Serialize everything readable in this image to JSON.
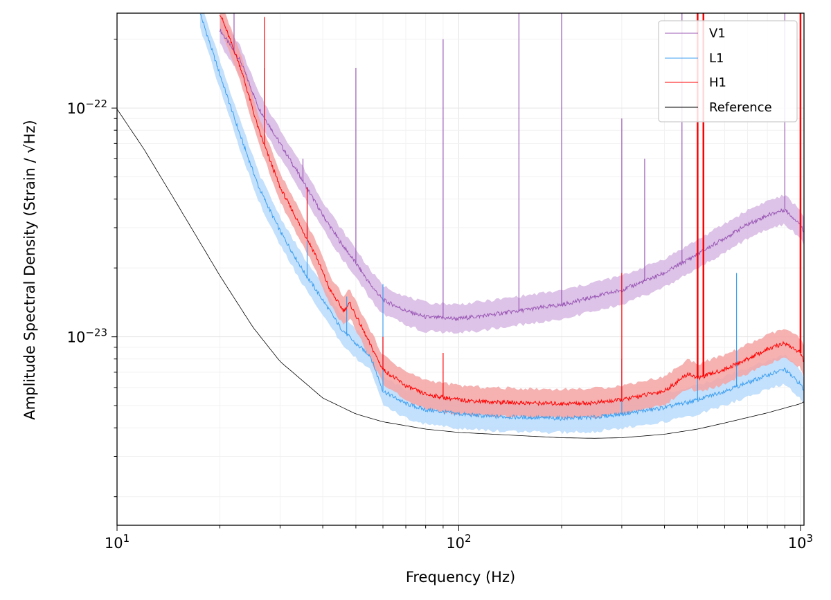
{
  "chart_data": {
    "type": "line",
    "xscale": "log",
    "yscale": "log",
    "xlabel": "Frequency (Hz)",
    "ylabel": "Amplitude Spectral Density (Strain / √Hz)",
    "xlim": [
      10,
      1024
    ],
    "ylim": [
      1.5e-24,
      2.6e-22
    ],
    "x_ticks": [
      {
        "value": 10,
        "base": "10",
        "exp": "1"
      },
      {
        "value": 100,
        "base": "10",
        "exp": "2"
      },
      {
        "value": 1000,
        "base": "10",
        "exp": "3"
      }
    ],
    "y_ticks": [
      {
        "value": 1e-23,
        "base": "10",
        "exp": "−23"
      },
      {
        "value": 1e-22,
        "base": "10",
        "exp": "−22"
      }
    ],
    "grid": "on (major and minor, light)",
    "legend_position": "top-right",
    "series": [
      {
        "name": "V1",
        "color": "#9b59b6",
        "band_color": "#d7b8e3",
        "x": [
          20,
          23,
          26,
          30,
          35,
          40,
          45,
          50,
          55,
          60,
          70,
          80,
          100,
          120,
          150,
          200,
          250,
          300,
          400,
          500,
          600,
          700,
          800,
          900,
          1000,
          1024
        ],
        "y": [
          2.2e-22,
          1.6e-22,
          1e-22,
          7e-23,
          4.8e-23,
          3.4e-23,
          2.6e-23,
          2.1e-23,
          1.7e-23,
          1.45e-23,
          1.3e-23,
          1.22e-23,
          1.2e-23,
          1.24e-23,
          1.3e-23,
          1.38e-23,
          1.5e-23,
          1.6e-23,
          1.9e-23,
          2.3e-23,
          2.7e-23,
          3.1e-23,
          3.4e-23,
          3.6e-23,
          3.1e-23,
          2.9e-23
        ],
        "peaks": [
          [
            22,
            2.6e-22
          ],
          [
            27,
            1.5e-22
          ],
          [
            35,
            6e-23
          ],
          [
            50,
            1.5e-22
          ],
          [
            90,
            2e-22
          ],
          [
            150,
            2.6e-22
          ],
          [
            200,
            2.6e-22
          ],
          [
            300,
            9e-23
          ],
          [
            350,
            6e-23
          ],
          [
            450,
            2.6e-22
          ],
          [
            500,
            2.6e-22
          ],
          [
            900,
            2.6e-22
          ]
        ]
      },
      {
        "name": "L1",
        "color": "#3d9ff0",
        "band_color": "#b8dafb",
        "x": [
          17.5,
          20,
          23,
          26,
          30,
          35,
          40,
          45,
          50,
          55,
          60,
          70,
          80,
          100,
          120,
          150,
          200,
          250,
          300,
          400,
          500,
          600,
          700,
          800,
          900,
          1000,
          1024
        ],
        "y": [
          2.6e-22,
          1.4e-22,
          7.5e-23,
          4.5e-23,
          2.9e-23,
          1.95e-23,
          1.45e-23,
          1.1e-23,
          9.3e-24,
          8.3e-24,
          5.8e-24,
          5.1e-24,
          4.8e-24,
          4.6e-24,
          4.5e-24,
          4.45e-24,
          4.4e-24,
          4.45e-24,
          4.6e-24,
          4.9e-24,
          5.3e-24,
          5.8e-24,
          6.3e-24,
          6.8e-24,
          7.2e-24,
          6.2e-24,
          5.8e-24
        ],
        "peaks": [
          [
            36,
            4e-23
          ],
          [
            47,
            1.5e-23
          ],
          [
            60,
            1.7e-23
          ],
          [
            300,
            8e-24
          ],
          [
            500,
            9e-24
          ],
          [
            650,
            1.9e-23
          ]
        ]
      },
      {
        "name": "H1",
        "color": "#ff0000",
        "band_color": "#f5a3a3",
        "x": [
          20,
          23,
          26,
          30,
          35,
          38,
          42,
          46,
          48,
          52,
          56,
          60,
          70,
          80,
          100,
          120,
          150,
          200,
          250,
          300,
          400,
          470,
          500,
          600,
          700,
          800,
          900,
          1000,
          1024
        ],
        "y": [
          2.6e-22,
          1.5e-22,
          8e-23,
          4.5e-23,
          2.9e-23,
          2.3e-23,
          1.6e-23,
          1.3e-23,
          1.4e-23,
          1.1e-23,
          8.8e-24,
          7.2e-24,
          6.1e-24,
          5.6e-24,
          5.3e-24,
          5.2e-24,
          5.15e-24,
          5.1e-24,
          5.15e-24,
          5.3e-24,
          5.8e-24,
          6.9e-24,
          6.6e-24,
          7.2e-24,
          8e-24,
          8.8e-24,
          9.4e-24,
          8.5e-24,
          7.8e-24
        ],
        "peaks": [
          [
            27,
            2.5e-22
          ],
          [
            36,
            4.5e-23
          ],
          [
            60,
            1e-23
          ],
          [
            90,
            8.5e-24
          ],
          [
            300,
            1.9e-23
          ],
          [
            500,
            2.6e-22
          ],
          [
            520,
            2.6e-22
          ],
          [
            1000,
            2.6e-22
          ]
        ]
      },
      {
        "name": "Reference",
        "color": "#000000",
        "x": [
          10,
          12,
          15,
          20,
          25,
          30,
          40,
          50,
          60,
          80,
          100,
          150,
          200,
          250,
          300,
          400,
          500,
          600,
          800,
          1000,
          1024
        ],
        "y": [
          9.9e-23,
          6.6e-23,
          3.8e-23,
          1.85e-23,
          1.1e-23,
          7.8e-24,
          5.4e-24,
          4.6e-24,
          4.25e-24,
          3.95e-24,
          3.82e-24,
          3.7e-24,
          3.62e-24,
          3.6e-24,
          3.62e-24,
          3.75e-24,
          3.95e-24,
          4.2e-24,
          4.65e-24,
          5.1e-24,
          5.2e-24
        ]
      }
    ]
  }
}
